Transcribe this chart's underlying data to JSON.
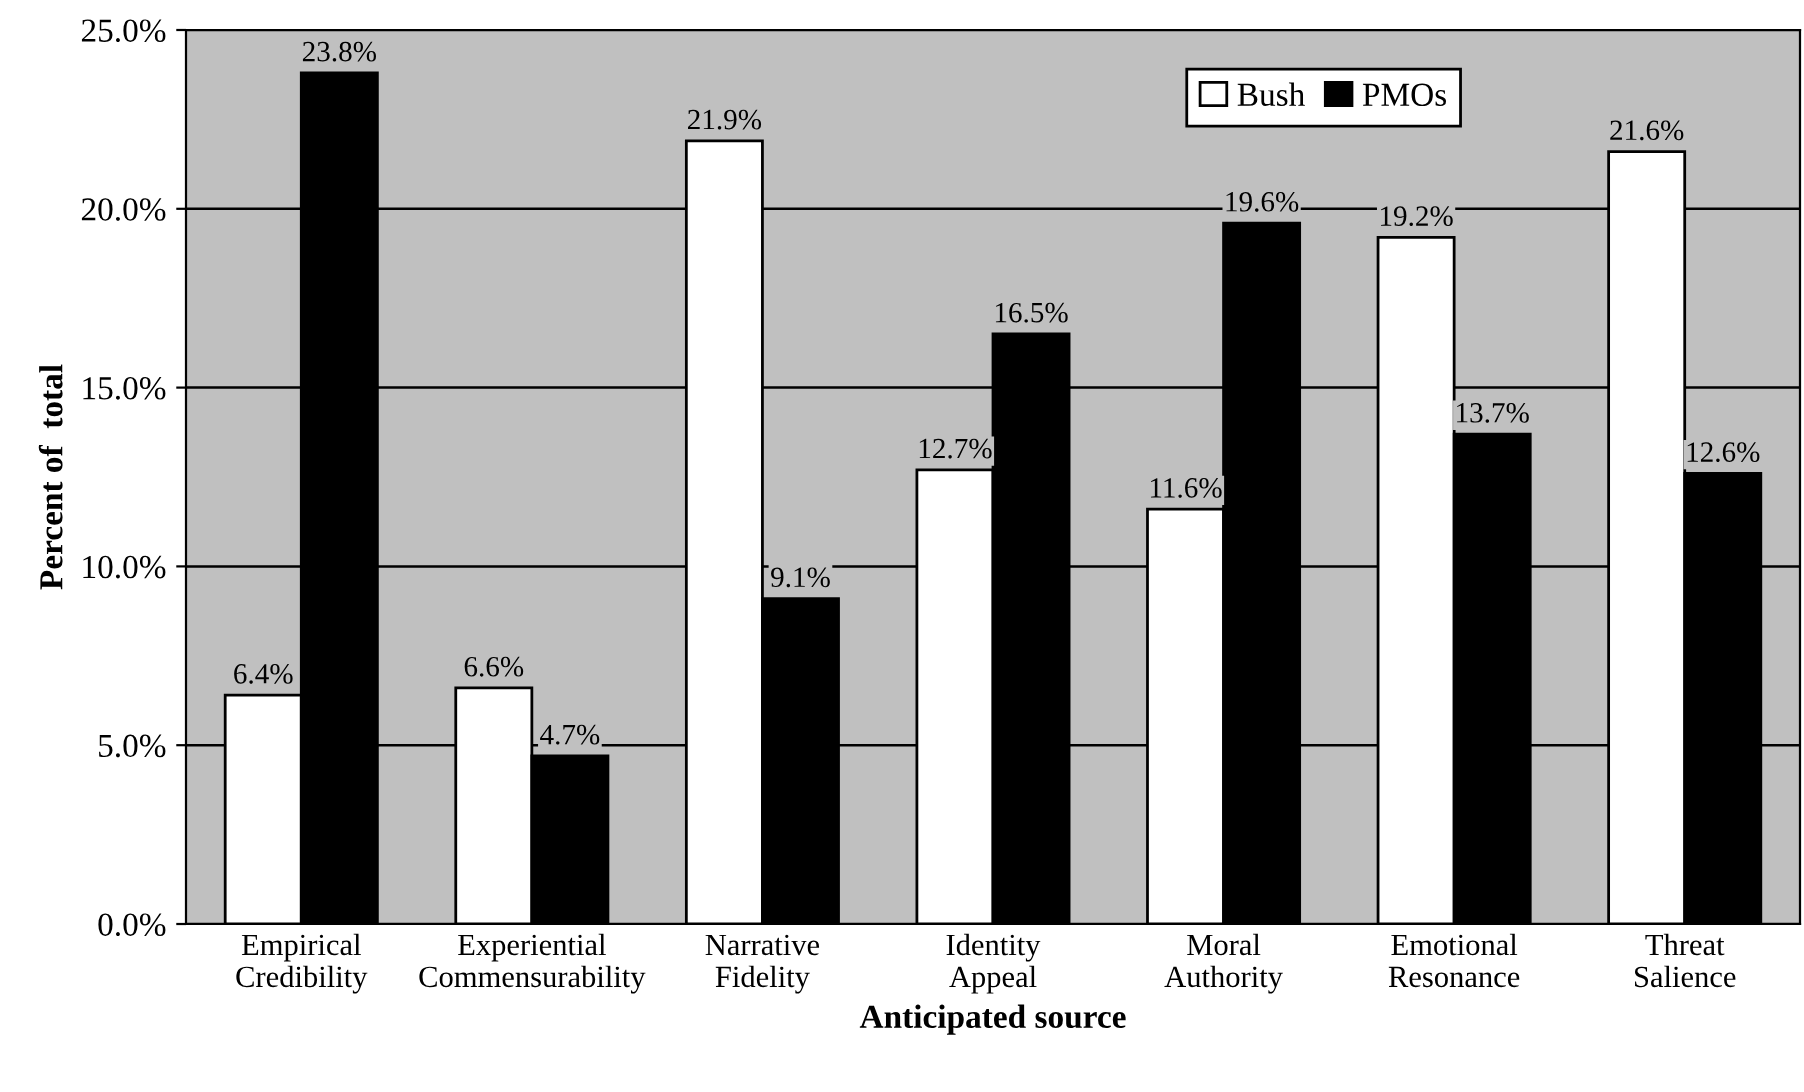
{
  "chart_data": {
    "type": "bar",
    "xlabel": "Anticipated source",
    "ylabel": "Percent of  total",
    "categories": [
      "Empirical\nCredibility",
      "Experiential\nCommensurability",
      "Narrative\nFidelity",
      "Identity\nAppeal",
      "Moral\nAuthority",
      "Emotional\nResonance",
      "Threat\nSalience"
    ],
    "series": [
      {
        "name": "Bush",
        "color": "#ffffff",
        "values": [
          6.4,
          6.6,
          21.9,
          12.7,
          11.6,
          19.2,
          21.6
        ],
        "value_labels": [
          "6.4%",
          "6.6%",
          "21.9%",
          "12.7%",
          "11.6%",
          "19.2%",
          "21.6%"
        ]
      },
      {
        "name": "PMOs",
        "color": "#000000",
        "values": [
          23.8,
          4.7,
          9.1,
          16.5,
          19.6,
          13.7,
          12.6
        ],
        "value_labels": [
          "23.8%",
          "4.7%",
          "9.1%",
          "16.5%",
          "19.6%",
          "13.7%",
          "12.6%"
        ]
      }
    ],
    "ylim": [
      0,
      25
    ],
    "yticks": [
      {
        "value": 0,
        "label": "0.0%"
      },
      {
        "value": 5,
        "label": "5.0%"
      },
      {
        "value": 10,
        "label": "10.0%"
      },
      {
        "value": 15,
        "label": "15.0%"
      },
      {
        "value": 20,
        "label": "20.0%"
      },
      {
        "value": 25,
        "label": "25.0%"
      }
    ],
    "grid": "y",
    "legend": "top right"
  }
}
